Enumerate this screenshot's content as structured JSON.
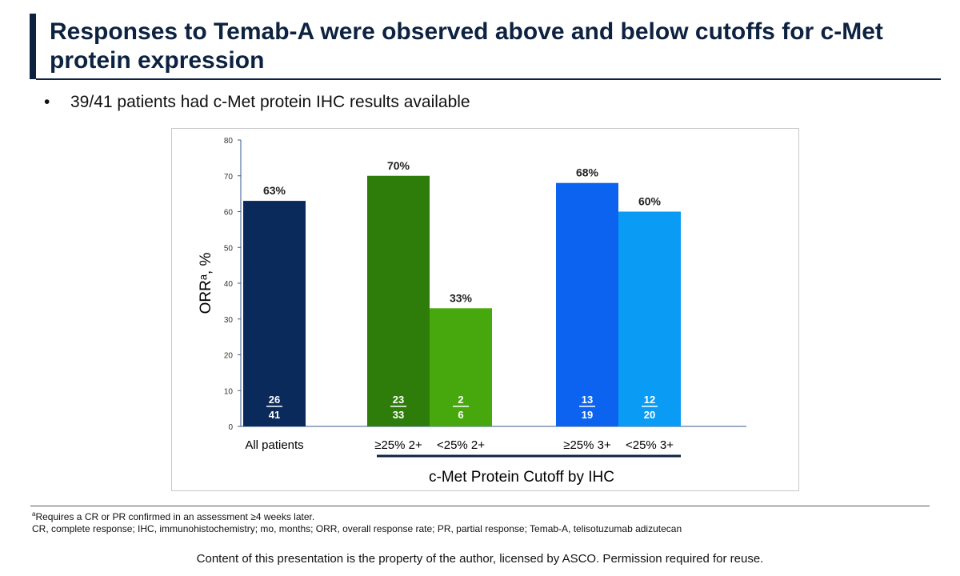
{
  "slide": {
    "title": "Responses to Temab-A were observed above and below cutoffs for c-Met protein expression",
    "bullet_marker": "•",
    "bullet": "39/41 patients had c-Met protein IHC results available"
  },
  "footnotes": {
    "superscript": "a",
    "note_a": "Requires a CR or PR confirmed in an assessment ≥4 weeks later.",
    "abbreviations": "CR, complete response; IHC, immunohistochemistry; mo, months; ORR, overall response rate; PR, partial response; Temab-A, telisotuzumab adizutecan"
  },
  "copyright": "Content of this presentation is the property of the author, licensed by ASCO. Permission required for reuse.",
  "chart_data": {
    "type": "bar",
    "ylabel": "ORRᵃ, %",
    "xlabel": "c-Met Protein Cutoff by IHC",
    "ylim": [
      0,
      80
    ],
    "yticks": [
      0,
      10,
      20,
      30,
      40,
      50,
      60,
      70,
      80
    ],
    "grid": false,
    "legend": "none",
    "categories": [
      "All patients",
      "≥25% 2+",
      "<25% 2+",
      "≥25% 3+",
      "<25% 3+"
    ],
    "values": [
      63,
      70,
      33,
      68,
      60
    ],
    "value_labels": [
      "63%",
      "70%",
      "33%",
      "68%",
      "60%"
    ],
    "numerators": [
      "26",
      "23",
      "2",
      "13",
      "12"
    ],
    "denominators": [
      "41",
      "33",
      "6",
      "19",
      "20"
    ],
    "colors": [
      "#0b2a5c",
      "#2e7d0a",
      "#46a80c",
      "#0b63f0",
      "#0a9cf5"
    ]
  }
}
